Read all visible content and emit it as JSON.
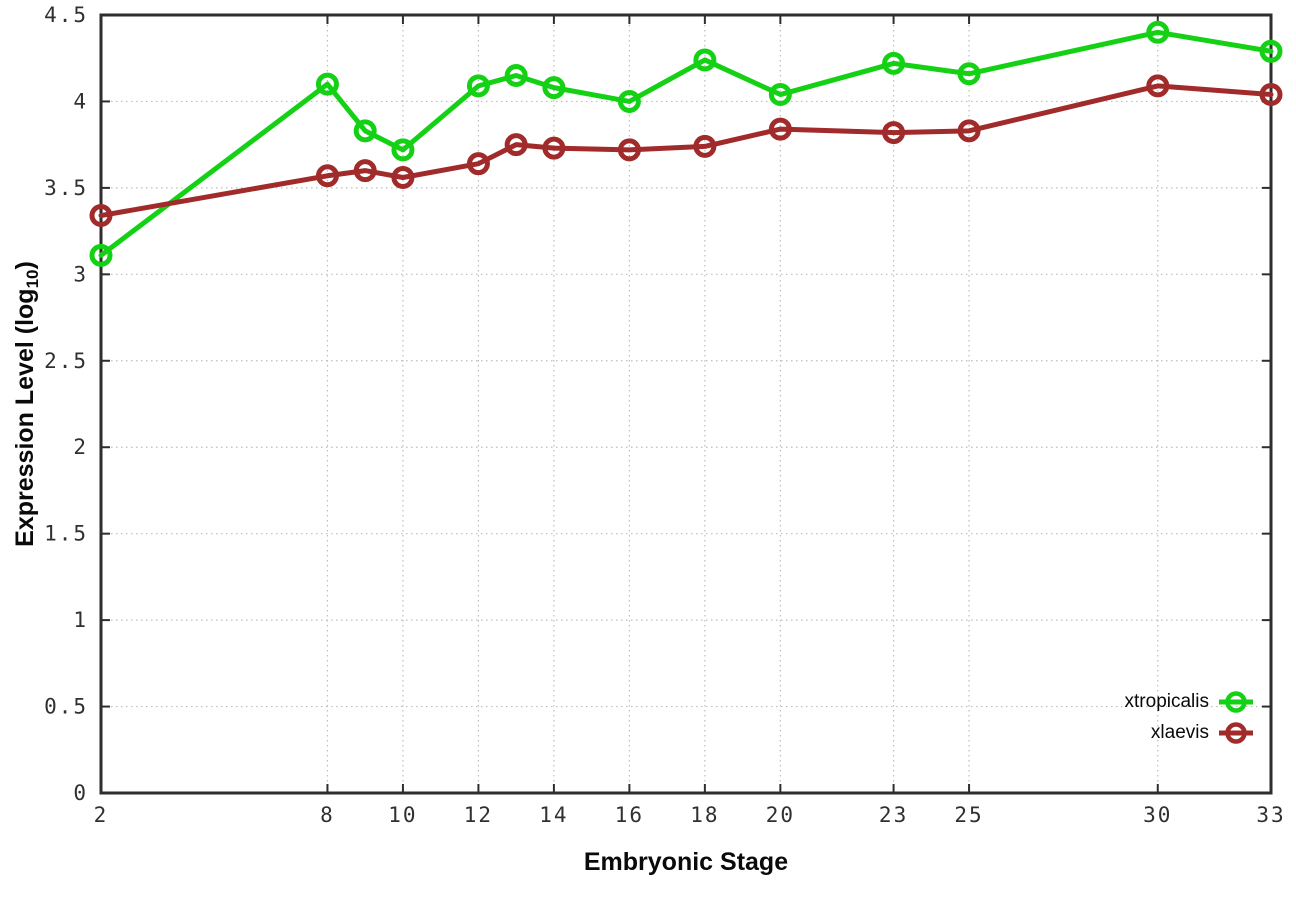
{
  "chart_data": {
    "type": "line",
    "title": "",
    "xlabel": "Embryonic Stage",
    "ylabel": "Expression Level (log10)",
    "ylabel_parts": {
      "main": "Expression Level (log",
      "sub": "10",
      "end": ")"
    },
    "x": [
      2,
      8,
      9,
      10,
      12,
      13,
      14,
      16,
      18,
      20,
      23,
      25,
      30,
      33
    ],
    "series": [
      {
        "name": "xtropicalis",
        "color": "#15d115",
        "values": [
          3.11,
          4.1,
          3.83,
          3.72,
          4.09,
          4.15,
          4.08,
          4.0,
          4.24,
          4.04,
          4.22,
          4.16,
          4.4,
          4.29
        ]
      },
      {
        "name": "xlaevis",
        "color": "#a12a2a",
        "values": [
          3.34,
          3.57,
          3.6,
          3.56,
          3.64,
          3.75,
          3.73,
          3.72,
          3.74,
          3.84,
          3.82,
          3.83,
          4.09,
          4.04
        ]
      }
    ],
    "x_ticks": [
      2,
      8,
      10,
      12,
      14,
      16,
      18,
      20,
      23,
      25,
      30,
      33
    ],
    "x_tick_labels": [
      "2",
      "8",
      "10",
      "12",
      "14",
      "16",
      "18",
      "20",
      "23",
      "25",
      "30",
      "33"
    ],
    "y_ticks": [
      0,
      0.5,
      1,
      1.5,
      2,
      2.5,
      3,
      3.5,
      4,
      4.5
    ],
    "y_tick_labels": [
      "0",
      "0.5",
      "1",
      "1.5",
      "2",
      "2.5",
      "3",
      "3.5",
      "4",
      "4.5"
    ],
    "xlim": [
      2,
      33
    ],
    "ylim": [
      0,
      4.5
    ],
    "grid": true,
    "legend_position": "bottom-right-inside"
  },
  "colors": {
    "background": "#ffffff",
    "axis_border": "#2e2e2e",
    "gridline": "#bdbdbd",
    "tick_text": "#303030",
    "label_text": "#0a0a0a"
  }
}
